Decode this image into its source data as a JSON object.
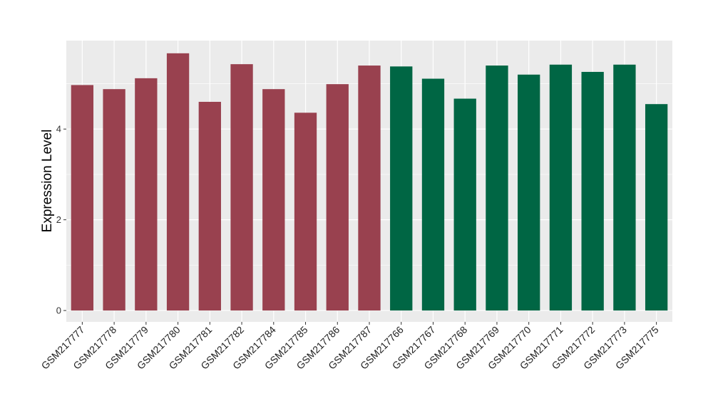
{
  "chart_data": {
    "type": "bar",
    "title": "",
    "xlabel": "",
    "ylabel": "Expression Level",
    "ylim": [
      -0.25,
      5.95
    ],
    "yticks": [
      0,
      2,
      4
    ],
    "grid": true,
    "legend": "none",
    "categories": [
      "GSM217777",
      "GSM217778",
      "GSM217779",
      "GSM217780",
      "GSM217781",
      "GSM217782",
      "GSM217784",
      "GSM217785",
      "GSM217786",
      "GSM217787",
      "GSM217766",
      "GSM217767",
      "GSM217768",
      "GSM217769",
      "GSM217770",
      "GSM217771",
      "GSM217772",
      "GSM217773",
      "GSM217775"
    ],
    "values": [
      4.97,
      4.88,
      5.12,
      5.67,
      4.6,
      5.43,
      4.88,
      4.36,
      4.99,
      5.4,
      5.38,
      5.11,
      4.67,
      5.4,
      5.2,
      5.42,
      5.26,
      5.42,
      4.55
    ],
    "bar_colors": [
      "#99414f",
      "#99414f",
      "#99414f",
      "#99414f",
      "#99414f",
      "#99414f",
      "#99414f",
      "#99414f",
      "#99414f",
      "#99414f",
      "#006644",
      "#006644",
      "#006644",
      "#006644",
      "#006644",
      "#006644",
      "#006644",
      "#006644",
      "#006644"
    ],
    "panel_background": "#ebebeb",
    "grid_color": "#ffffff"
  }
}
